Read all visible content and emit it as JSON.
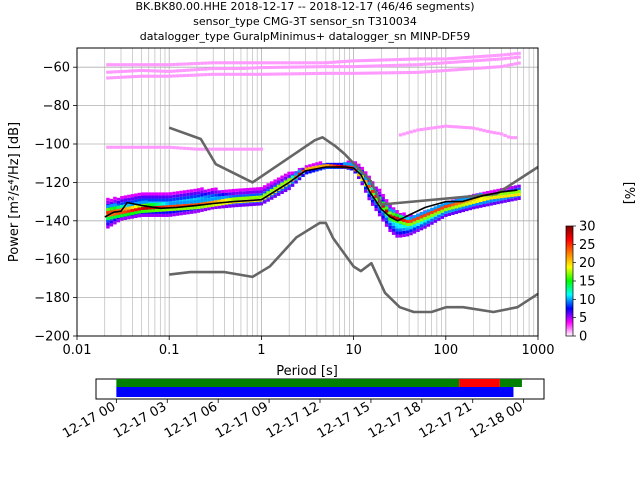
{
  "header": {
    "line1": "BK.BK80.00.HHE   2018-12-17 -- 2018-12-17  (46/46 segments)",
    "line2": "sensor_type CMG-3T sensor_sn T310034",
    "line3": "datalogger_type GuralpMinimus+ datalogger_sn MINP-DF59"
  },
  "colors": {
    "nlnm_nhnm": "#666666",
    "mean_curve": "#000000",
    "grid": "#b0b0b0",
    "coverage_data": "#008000",
    "coverage_gap": "#ff0000",
    "coverage_used": "#0000ff"
  },
  "chart_data": [
    {
      "type": "heatmap",
      "kind": "PPSD probability density",
      "xlabel": "Period [s]",
      "ylabel": "Power [m²/s⁴/Hz] [dB]",
      "x_scale": "log",
      "xlim": [
        0.01,
        1000
      ],
      "ylim": [
        -200,
        -50
      ],
      "x_ticks": [
        0.01,
        0.1,
        1,
        10,
        100,
        1000
      ],
      "x_tick_labels": [
        "0.01",
        "0.1",
        "1",
        "10",
        "100",
        "1000"
      ],
      "y_ticks": [
        -200,
        -180,
        -160,
        -140,
        -120,
        -100,
        -80,
        -60
      ],
      "grid": true,
      "colorbar": {
        "label": "[%]",
        "range": [
          0,
          30
        ],
        "ticks": [
          0,
          5,
          10,
          15,
          20,
          25,
          30
        ],
        "colormap": [
          "#ffffff",
          "#ff00ff",
          "#0000ff",
          "#00ffff",
          "#00ff00",
          "#ffff00",
          "#ff7f00",
          "#ff0000",
          "#800000"
        ]
      },
      "series": [
        {
          "name": "NHNM",
          "style": "gray",
          "x": [
            0.1,
            0.22,
            0.32,
            0.8,
            3.8,
            4.6,
            6.3,
            7.9,
            15.4,
            20,
            354.8,
            1000
          ],
          "y": [
            -91.5,
            -97.4,
            -110.5,
            -120,
            -98,
            -96.5,
            -101,
            -105,
            -119.3,
            -131.5,
            -126,
            -112
          ]
        },
        {
          "name": "NLNM",
          "style": "gray",
          "x": [
            0.1,
            0.17,
            0.4,
            0.8,
            1.24,
            2.4,
            4.3,
            5,
            6.0,
            10,
            12,
            15.6,
            21.9,
            31.6,
            45,
            70,
            101,
            154,
            328,
            600,
            1000
          ],
          "y": [
            -168,
            -166.7,
            -166.7,
            -169.2,
            -163.7,
            -148.6,
            -141.1,
            -141.1,
            -149,
            -163.8,
            -166.2,
            -162.1,
            -177.5,
            -185,
            -187.5,
            -187.5,
            -185,
            -185,
            -187.5,
            -185,
            -178
          ]
        },
        {
          "name": "mean",
          "style": "black",
          "x": [
            0.02,
            0.025,
            0.03,
            0.035,
            0.05,
            0.08,
            0.12,
            0.2,
            0.3,
            0.5,
            1,
            2,
            3,
            5,
            8,
            10,
            12,
            15,
            20,
            25,
            30,
            40,
            60,
            100,
            150,
            250,
            400,
            600
          ],
          "y": [
            -138,
            -135.5,
            -135,
            -130.5,
            -132,
            -133.5,
            -133,
            -132,
            -131,
            -130,
            -129,
            -120,
            -114,
            -112,
            -112,
            -112.5,
            -116,
            -125,
            -134,
            -138,
            -140,
            -137,
            -133,
            -130,
            -130,
            -127,
            -125,
            -124
          ]
        }
      ],
      "density_bands": [
        {
          "x": [
            0.02,
            0.03,
            0.05,
            0.1,
            0.2,
            0.3,
            0.5,
            1,
            2,
            3,
            5,
            8,
            10,
            12,
            15,
            20,
            25,
            30,
            40,
            60,
            100,
            200,
            400,
            650
          ],
          "y_low": [
            -145,
            -140,
            -138,
            -138,
            -136,
            -134,
            -133,
            -132,
            -124,
            -116,
            -113,
            -113,
            -114,
            -120,
            -130,
            -139,
            -146,
            -149,
            -148,
            -144,
            -138,
            -134,
            -131,
            -129
          ],
          "y_high": [
            -130,
            -128,
            -126,
            -126,
            -124,
            -124,
            -125,
            -124,
            -116,
            -112,
            -110,
            -110,
            -110,
            -112,
            -118,
            -126,
            -132,
            -136,
            -138,
            -136,
            -131,
            -127,
            -124,
            -121
          ],
          "percent": 12
        },
        {
          "x": [
            0.02,
            0.05,
            0.1,
            0.2,
            0.5,
            1,
            2,
            3,
            5,
            10,
            15,
            25,
            40,
            100,
            300,
            650
          ],
          "y_low": [
            -140,
            -136,
            -135,
            -134,
            -131,
            -130,
            -121,
            -114,
            -112,
            -113,
            -125,
            -140,
            -143,
            -135,
            -129,
            -127
          ],
          "y_high": [
            -133,
            -131,
            -131,
            -130,
            -128,
            -127,
            -118,
            -113,
            -111,
            -111,
            -121,
            -135,
            -139,
            -131,
            -126,
            -124
          ],
          "percent": 28
        }
      ],
      "faint_bands": [
        {
          "x": [
            0.02,
            0.05,
            0.1,
            0.3,
            0.6,
            1,
            5,
            10,
            50,
            100,
            200,
            400,
            650
          ],
          "y": [
            -66,
            -65,
            -65,
            -64,
            -64,
            -64,
            -63.5,
            -63.5,
            -63,
            -62,
            -61,
            -60,
            -58
          ],
          "percent": 2
        },
        {
          "x": [
            0.02,
            0.05,
            0.1,
            0.3,
            0.6,
            1,
            5,
            10,
            50,
            100,
            200,
            400,
            650
          ],
          "y": [
            -63,
            -62,
            -62.5,
            -61,
            -61,
            -60.5,
            -60,
            -60,
            -59,
            -58,
            -57,
            -56,
            -55
          ],
          "percent": 2
        },
        {
          "x": [
            0.02,
            0.05,
            0.1,
            0.3,
            1,
            5,
            10,
            50,
            100,
            200,
            400,
            650
          ],
          "y": [
            -59,
            -59,
            -59,
            -58,
            -58,
            -58,
            -57,
            -56,
            -56,
            -55,
            -54,
            -53
          ],
          "percent": 2
        },
        {
          "x": [
            0.02,
            0.05,
            0.1,
            0.2,
            0.5,
            1
          ],
          "y": [
            -102,
            -102,
            -102,
            -103,
            -103,
            -103
          ],
          "percent": 2
        },
        {
          "x": [
            30,
            50,
            100,
            200,
            300,
            400,
            500,
            600
          ],
          "y": [
            -96,
            -93,
            -91,
            -92,
            -94,
            -95,
            -97,
            -97
          ],
          "percent": 2
        }
      ]
    },
    {
      "type": "bar",
      "kind": "data coverage timeline",
      "x_tick_labels": [
        "12-17 00",
        "12-17 03",
        "12-17 06",
        "12-17 09",
        "12-17 12",
        "12-17 15",
        "12-17 18",
        "12-17 21",
        "12-18 00"
      ],
      "x_hours": [
        0,
        3,
        6,
        9,
        12,
        15,
        18,
        21,
        24
      ],
      "xlim_hours": [
        -1.2,
        25.2
      ],
      "rows": [
        {
          "role": "data",
          "segments": [
            {
              "start": 0,
              "end": 20.2,
              "color": "green"
            },
            {
              "start": 20.2,
              "end": 22.6,
              "color": "red"
            },
            {
              "start": 22.6,
              "end": 23.9,
              "color": "green"
            }
          ]
        },
        {
          "role": "psd",
          "segments": [
            {
              "start": 0,
              "end": 23.4,
              "color": "blue"
            }
          ]
        }
      ]
    }
  ]
}
